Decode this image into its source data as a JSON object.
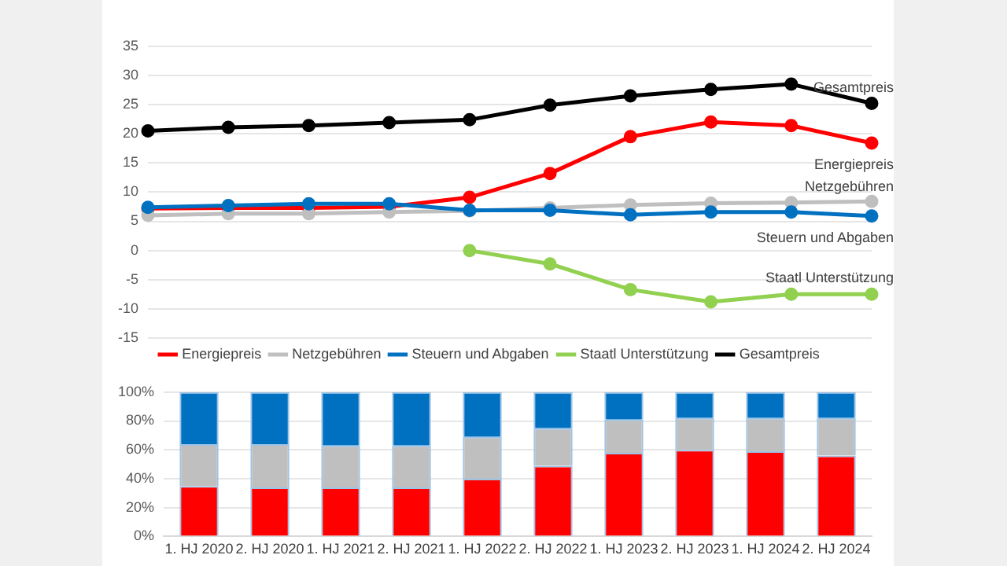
{
  "chart_data": [
    {
      "type": "line",
      "categories": [
        null,
        null,
        null,
        null,
        null,
        null,
        null,
        null,
        null,
        null
      ],
      "tick_labels": "y",
      "grid": "y",
      "legend": "bottom",
      "marker": "circle",
      "ylim": [
        -15,
        35
      ],
      "yticks": [
        -15,
        -10,
        -5,
        0,
        5,
        10,
        15,
        20,
        25,
        30,
        35
      ],
      "series": [
        {
          "name": "Energiepreis",
          "color": "#ff0000",
          "values": [
            7.2,
            7.3,
            7.3,
            7.5,
            9.1,
            13.2,
            19.5,
            22.0,
            21.4,
            18.4
          ]
        },
        {
          "name": "Netzgebühren",
          "color": "#bfbfbf",
          "values": [
            6.0,
            6.3,
            6.3,
            6.6,
            6.8,
            7.3,
            7.8,
            8.1,
            8.2,
            8.4
          ]
        },
        {
          "name": "Steuern und Abgaben",
          "color": "#0070c0",
          "values": [
            7.4,
            7.7,
            8.0,
            8.0,
            6.9,
            6.9,
            6.1,
            6.6,
            6.6,
            5.9
          ]
        },
        {
          "name": "Staatl Unterstützung",
          "color": "#92d050",
          "values": [
            null,
            null,
            null,
            null,
            0,
            -2.3,
            -6.7,
            -8.8,
            -7.5,
            -7.5
          ]
        },
        {
          "name": "Gesamtpreis",
          "color": "#000000",
          "values": [
            20.5,
            21.1,
            21.4,
            21.9,
            22.4,
            24.9,
            26.5,
            27.6,
            28.5,
            25.2
          ]
        }
      ]
    },
    {
      "type": "bar",
      "stacked": true,
      "categories": [
        "1. HJ 2020",
        "2. HJ 2020",
        "1. HJ 2021",
        "2. HJ 2021",
        "1. HJ 2022",
        "2. HJ 2022",
        "1. HJ 2023",
        "2. HJ 2023",
        "1. HJ 2024",
        "2. HJ 2024"
      ],
      "grid": "y",
      "ylim": [
        0,
        100
      ],
      "yticks": [
        {
          "value": 0,
          "label": "0%"
        },
        {
          "value": 20,
          "label": "20%"
        },
        {
          "value": 40,
          "label": "40%"
        },
        {
          "value": 60,
          "label": "60%"
        },
        {
          "value": 80,
          "label": "80%"
        },
        {
          "value": 100,
          "label": "100%"
        }
      ],
      "series": [
        {
          "color": "#ff0000",
          "values": [
            35,
            34,
            34,
            34,
            40,
            49,
            58,
            60,
            59,
            56
          ]
        },
        {
          "color": "#bfbfbf",
          "values": [
            29,
            30,
            29,
            29,
            29,
            26,
            23,
            22,
            23,
            26
          ]
        },
        {
          "color": "#0070c0",
          "values": [
            36,
            36,
            37,
            37,
            31,
            25,
            19,
            18,
            18,
            18
          ]
        }
      ]
    }
  ]
}
